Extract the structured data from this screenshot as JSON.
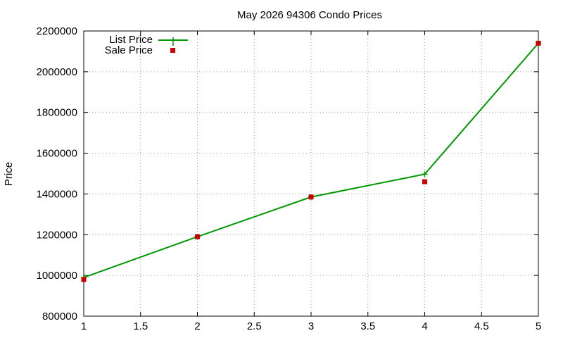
{
  "chart_data": {
    "type": "line",
    "title": "May 2026 94306 Condo Prices",
    "xlabel": "",
    "ylabel": "Price",
    "xlim": [
      1,
      5
    ],
    "ylim": [
      800000,
      2200000
    ],
    "x_ticks": [
      "1",
      "1.5",
      "2",
      "2.5",
      "3",
      "3.5",
      "4",
      "4.5",
      "5"
    ],
    "y_ticks": [
      "800000",
      "1000000",
      "1200000",
      "1400000",
      "1600000",
      "1800000",
      "2000000",
      "2200000"
    ],
    "grid": true,
    "legend_position": "top-left",
    "series": [
      {
        "name": "List Price",
        "style": "lines+points",
        "marker": "plus",
        "color": "#009900",
        "x": [
          1,
          2,
          3,
          4,
          5
        ],
        "y": [
          990000,
          1190000,
          1385000,
          1497000,
          2140000
        ]
      },
      {
        "name": "Sale Price",
        "style": "points",
        "marker": "square",
        "color": "#cc0000",
        "x": [
          1,
          2,
          3,
          4,
          5
        ],
        "y": [
          980000,
          1190000,
          1385000,
          1460000,
          2140000
        ]
      }
    ]
  }
}
